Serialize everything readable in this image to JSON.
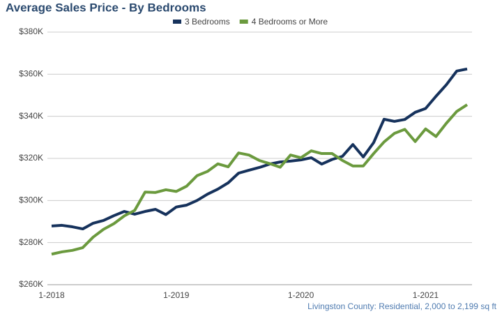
{
  "chart_data": {
    "type": "line",
    "title": "Average Sales Price - By Bedrooms",
    "note": "Livingston County: Residential, 2,000 to 2,199 sq ft",
    "categories": [
      "1-2018",
      null,
      null,
      null,
      null,
      null,
      null,
      null,
      null,
      null,
      null,
      null,
      "1-2019",
      null,
      null,
      null,
      null,
      null,
      null,
      null,
      null,
      null,
      null,
      null,
      "1-2020",
      null,
      null,
      null,
      null,
      null,
      null,
      null,
      null,
      null,
      null,
      null,
      "1-2021",
      null,
      null,
      null,
      null
    ],
    "series": [
      {
        "name": "3 Bedrooms",
        "color": "#16325c",
        "values": [
          287900,
          288200,
          287500,
          286500,
          289200,
          290500,
          292800,
          294800,
          293500,
          294800,
          295800,
          293300,
          296900,
          297800,
          300000,
          303000,
          305400,
          308400,
          313000,
          314400,
          315700,
          317300,
          318300,
          318700,
          319300,
          320300,
          317300,
          319500,
          321000,
          326600,
          320700,
          327500,
          338600,
          337600,
          338500,
          341900,
          343700,
          349500,
          355000,
          361500,
          362500
        ]
      },
      {
        "name": "4 Bedrooms or More",
        "color": "#6b9a3e",
        "values": [
          274500,
          275600,
          276300,
          277600,
          282600,
          286300,
          289000,
          292700,
          295300,
          304000,
          303800,
          305100,
          304300,
          306800,
          311800,
          313800,
          317400,
          316000,
          322600,
          321600,
          319000,
          317500,
          315800,
          321600,
          320300,
          323600,
          322300,
          322300,
          319000,
          316400,
          316400,
          322300,
          327800,
          331900,
          333800,
          328000,
          334000,
          330400,
          336700,
          342300,
          345500
        ]
      }
    ],
    "ylim": [
      260000,
      380000
    ],
    "yticks": [
      {
        "value": 260000,
        "label": "$260K"
      },
      {
        "value": 280000,
        "label": "$280K"
      },
      {
        "value": 300000,
        "label": "$300K"
      },
      {
        "value": 320000,
        "label": "$320K"
      },
      {
        "value": 340000,
        "label": "$340K"
      },
      {
        "value": 360000,
        "label": "$360K"
      },
      {
        "value": 380000,
        "label": "$380K"
      }
    ],
    "grid": true
  }
}
